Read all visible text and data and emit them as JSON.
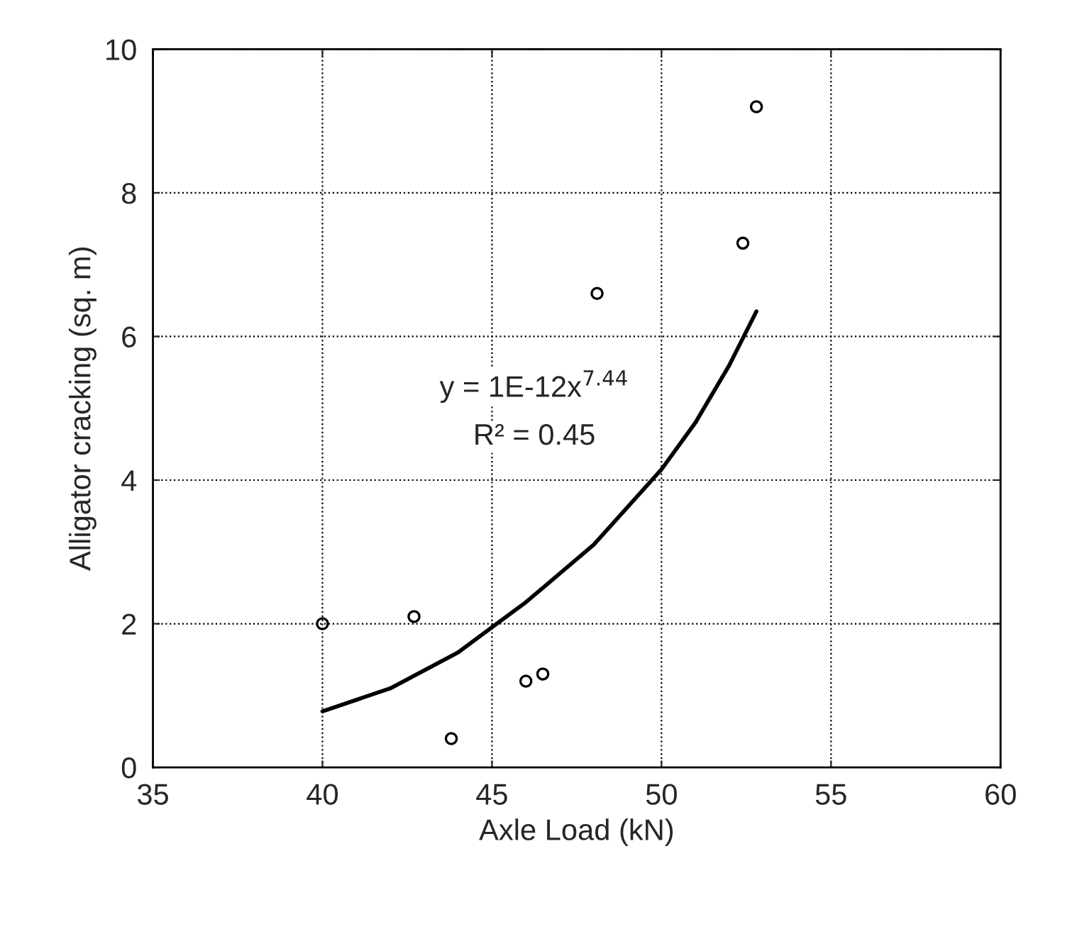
{
  "chart_data": {
    "type": "scatter",
    "xlabel": "Axle Load (kN)",
    "ylabel": "Alligator cracking (sq. m)",
    "xlim": [
      35,
      60
    ],
    "xticks": [
      35,
      40,
      45,
      50,
      55,
      60
    ],
    "ylim": [
      0,
      10
    ],
    "yticks": [
      0,
      2,
      4,
      6,
      8,
      10
    ],
    "grid": true,
    "legend": false,
    "series": [
      {
        "color": "#000000",
        "marker": "circle",
        "x": [
          40,
          42.7,
          43.8,
          46.0,
          46.5,
          48.1,
          52.4,
          52.8
        ],
        "values": [
          2.0,
          2.1,
          0.4,
          1.2,
          1.3,
          6.6,
          7.3,
          9.2
        ]
      },
      {
        "type": "line",
        "color": "#000000",
        "marker": "none",
        "line_style": "solid",
        "x": [
          40,
          42,
          44,
          45,
          46,
          48,
          50,
          51,
          52,
          52.8
        ],
        "values": [
          0.78,
          1.1,
          1.6,
          1.95,
          2.3,
          3.1,
          4.15,
          4.8,
          5.6,
          6.35
        ]
      }
    ],
    "annotations": [
      "y = 1E-12x$^{7.44}$",
      "R² = 0.45"
    ]
  }
}
